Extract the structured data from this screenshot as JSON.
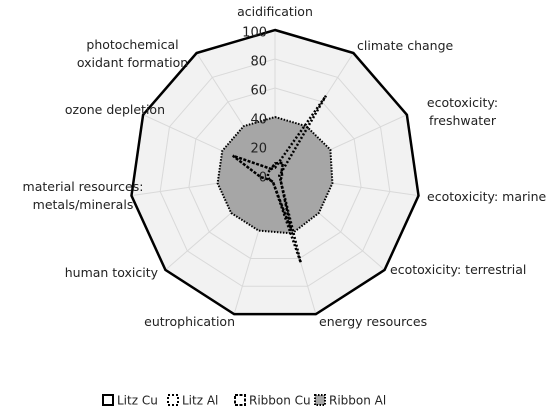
{
  "chart_data": {
    "type": "radar",
    "categories": [
      "acidification",
      "climate change",
      "ecotoxicity: freshwater",
      "ecotoxicity: marine",
      "ecotoxicity: terrestrial",
      "energy resources",
      "eutrophication",
      "human toxicity",
      "material resources: metals/minerals",
      "ozone depletion",
      "photochemical oxidant formation"
    ],
    "rlim": [
      0,
      100
    ],
    "rticks": [
      0,
      20,
      40,
      60,
      80,
      100
    ],
    "grid": true,
    "legend": "bottom",
    "series": [
      {
        "name": "Litz Cu",
        "color": "#000000",
        "fill": "none",
        "values": [
          100,
          100,
          100,
          100,
          100,
          100,
          100,
          100,
          100,
          100,
          100
        ]
      },
      {
        "name": "Litz Al",
        "color": "#000000",
        "fill": "none",
        "values": [
          5,
          65,
          5,
          3,
          5,
          63,
          5,
          5,
          5,
          5,
          5
        ]
      },
      {
        "name": "Ribbon Cu",
        "color": "#000000",
        "fill": "none",
        "values": [
          8,
          10,
          5,
          5,
          5,
          40,
          5,
          5,
          10,
          32,
          5
        ]
      },
      {
        "name": "Ribbon Al",
        "color": "#000000",
        "fill": "#a6a6a6",
        "values": [
          40,
          40,
          42,
          40,
          40,
          42,
          40,
          40,
          40,
          40,
          40
        ]
      }
    ]
  }
}
